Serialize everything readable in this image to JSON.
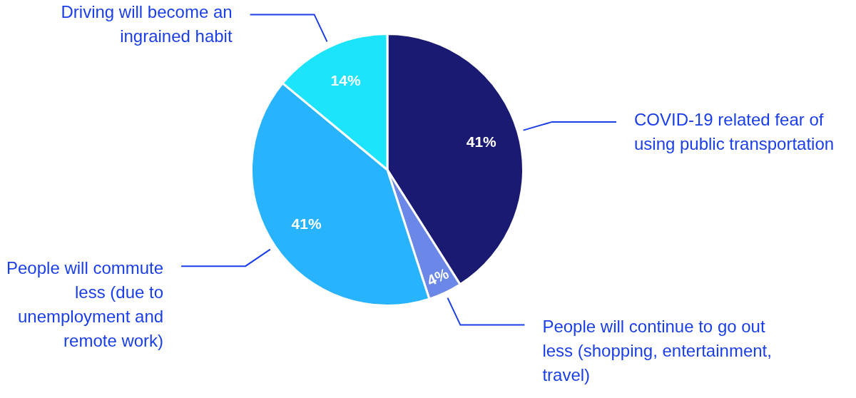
{
  "chart_data": {
    "type": "pie",
    "categories": [
      "COVID-19 related fear of using public transportation",
      "People will continue to go out less (shopping, entertainment, travel)",
      "People will commute less (due to unemployment and remote work)",
      "Driving will become an ingrained habit"
    ],
    "values": [
      41,
      4,
      41,
      14
    ],
    "colors": [
      "#1b1a73",
      "#6b87e8",
      "#27b3fe",
      "#1ce4fd"
    ],
    "value_labels": [
      "41%",
      "4%",
      "41%",
      "14%"
    ],
    "legend": false
  }
}
